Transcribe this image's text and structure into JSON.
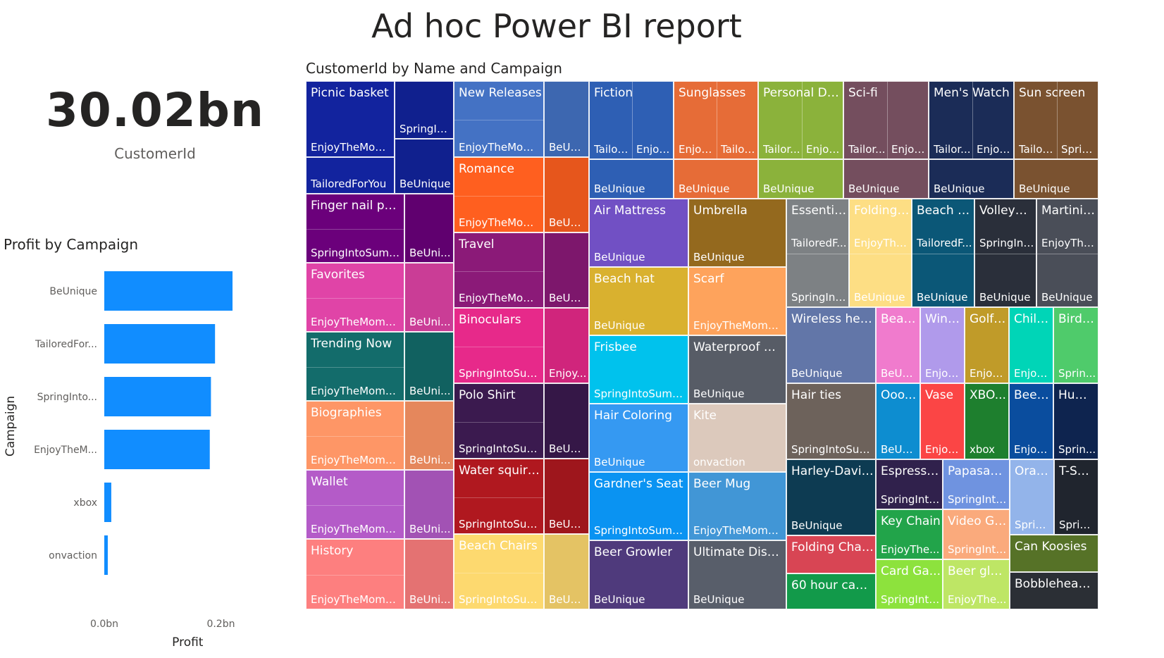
{
  "page": {
    "title": "Ad hoc Power BI report"
  },
  "kpi": {
    "value": "30.02bn",
    "label": "CustomerId"
  },
  "bar_chart": {
    "title": "Profit by Campaign",
    "xlabel": "Profit",
    "ylabel": "Campaign",
    "color": "#118DFF"
  },
  "treemap": {
    "title": "CustomerId by Name and Campaign"
  },
  "chart_data": [
    {
      "type": "bar",
      "orientation": "horizontal",
      "title": "Profit by Campaign",
      "xlabel": "Profit",
      "ylabel": "Campaign",
      "categories": [
        "BeUnique",
        "TailoredFor...",
        "SpringInto...",
        "EnjoyTheM...",
        "xbox",
        "onvaction"
      ],
      "values": [
        0.22,
        0.19,
        0.183,
        0.181,
        0.012,
        0.006
      ],
      "unit": "bn",
      "xlim": [
        0,
        0.22
      ],
      "xticks": [
        "0.0bn",
        "0.2bn"
      ],
      "grid": false,
      "legend": "none"
    },
    {
      "type": "treemap",
      "title": "CustomerId by Name and Campaign",
      "groups": [
        {
          "name": "Picnic basket",
          "color": "#12239E",
          "children": [
            "EnjoyTheMom...",
            "TailoredForYou",
            "SpringInt...",
            "BeUnique"
          ]
        },
        {
          "name": "New Releases",
          "color": "#4472C4",
          "children": [
            "EnjoyTheMome...",
            "BeUni..."
          ]
        },
        {
          "name": "Romance",
          "color": "#FF5F1F",
          "children": [
            "EnjoyTheMome...",
            "BeUni..."
          ]
        },
        {
          "name": "Travel",
          "color": "#8B1A78",
          "children": [
            "EnjoyTheMome...",
            "BeUni..."
          ]
        },
        {
          "name": "Binoculars",
          "color": "#E7298A",
          "children": [
            "SpringIntoSum...",
            "Enjoy..."
          ]
        },
        {
          "name": "Polo Shirt",
          "color": "#3B1A4F",
          "children": [
            "SpringIntoSum...",
            "BeUni..."
          ]
        },
        {
          "name": "Water squirter",
          "color": "#B0181F",
          "children": [
            "SpringIntoSum...",
            "BeUni..."
          ]
        },
        {
          "name": "Beach Chairs",
          "color": "#FDD96F",
          "children": [
            "SpringIntoSum...",
            "BeUni..."
          ]
        },
        {
          "name": "Finger nail polish",
          "color": "#6B007B",
          "children": [
            "SpringIntoSummer",
            "BeUni..."
          ]
        },
        {
          "name": "Favorites",
          "color": "#E044A7",
          "children": [
            "EnjoyTheMoment",
            "BeUni..."
          ]
        },
        {
          "name": "Trending Now",
          "color": "#136C6B",
          "children": [
            "EnjoyTheMoment",
            "BeUni..."
          ]
        },
        {
          "name": "Biographies",
          "color": "#FE9666",
          "children": [
            "EnjoyTheMoment",
            "BeUni..."
          ]
        },
        {
          "name": "Wallet",
          "color": "#B45BC8",
          "children": [
            "EnjoyTheMoment",
            "BeUni..."
          ]
        },
        {
          "name": "History",
          "color": "#FD7F7F",
          "children": [
            "EnjoyTheMoment",
            "BeUni..."
          ]
        },
        {
          "name": "Fiction",
          "color": "#2E5FB4",
          "children": [
            "Tailor...",
            "Enjoy...",
            "BeUnique"
          ]
        },
        {
          "name": "Sunglasses",
          "color": "#E66C37",
          "children": [
            "Enjoy...",
            "Tailor...",
            "BeUnique"
          ]
        },
        {
          "name": "Personal Dev...",
          "color": "#8BB23B",
          "children": [
            "Tailor...",
            "Enjoy...",
            "BeUnique"
          ]
        },
        {
          "name": "Sci-fi",
          "color": "#744E5E",
          "children": [
            "Tailor...",
            "Enjoy...",
            "BeUnique"
          ]
        },
        {
          "name": "Men's Watch",
          "color": "#1B2C57",
          "children": [
            "Tailor...",
            "Enjoy...",
            "BeUnique"
          ]
        },
        {
          "name": "Sun screen",
          "color": "#7A5230",
          "children": [
            "Tailor...",
            "Sprin...",
            "BeUnique"
          ]
        },
        {
          "name": "Air Mattress",
          "color": "#7150C4",
          "children": [
            "BeUnique"
          ]
        },
        {
          "name": "Umbrella",
          "color": "#94691E",
          "children": [
            "BeUnique"
          ]
        },
        {
          "name": "Beach hat",
          "color": "#D9B12F",
          "children": [
            "BeUnique"
          ]
        },
        {
          "name": "Scarf",
          "color": "#FEA35C",
          "children": [
            "EnjoyTheMoment"
          ]
        },
        {
          "name": "Frisbee",
          "color": "#00C2ED",
          "children": [
            "SpringIntoSummer"
          ]
        },
        {
          "name": "Waterproof wat...",
          "color": "#575C66",
          "children": [
            "BeUnique"
          ]
        },
        {
          "name": "Hair Coloring",
          "color": "#3599F2",
          "children": [
            "BeUnique"
          ]
        },
        {
          "name": "Kite",
          "color": "#DCC9BC",
          "children": [
            "onvaction"
          ]
        },
        {
          "name": "Gardner's Seat",
          "color": "#0A93F2",
          "children": [
            "SpringIntoSummer"
          ]
        },
        {
          "name": "Beer Mug",
          "color": "#4196D6",
          "children": [
            "EnjoyTheMoment"
          ]
        },
        {
          "name": "Beer Growler",
          "color": "#4F3A7C",
          "children": [
            "BeUnique"
          ]
        },
        {
          "name": "Ultimate Disc G...",
          "color": "#585E6A",
          "children": [
            "BeUnique"
          ]
        },
        {
          "name": "Essential...",
          "color": "#7D8184",
          "children": [
            "TailoredF...",
            "SpringInt..."
          ]
        },
        {
          "name": "Folding ...",
          "color": "#FDDE84",
          "children": [
            "EnjoyThe...",
            "BeUnique"
          ]
        },
        {
          "name": "Beach T...",
          "color": "#0B5777",
          "children": [
            "TailoredF...",
            "BeUnique"
          ]
        },
        {
          "name": "Volleyba...",
          "color": "#2A2F3A",
          "children": [
            "SpringInt...",
            "BeUnique"
          ]
        },
        {
          "name": "Martini ...",
          "color": "#4A4E58",
          "children": [
            "EnjoyThe...",
            "BeUnique"
          ]
        },
        {
          "name": "Wireless head...",
          "color": "#6276A8",
          "children": [
            "BeUnique"
          ]
        },
        {
          "name": "Hair ties",
          "color": "#6D625B",
          "children": [
            "SpringIntoSum..."
          ]
        },
        {
          "name": "Harley-David...",
          "color": "#0D3B52",
          "children": [
            "BeUnique"
          ]
        },
        {
          "name": "Folding Chairs",
          "color": "#D84554"
        },
        {
          "name": "60 hour candle",
          "color": "#129A4A"
        },
        {
          "name": "Beac...",
          "color": "#F07BCD",
          "children": [
            "BeUni..."
          ]
        },
        {
          "name": "Wine...",
          "color": "#B09AEB",
          "children": [
            "Enjoy..."
          ]
        },
        {
          "name": "Golf ...",
          "color": "#C09B29",
          "children": [
            "Enjoy..."
          ]
        },
        {
          "name": "Child...",
          "color": "#00D5B7",
          "children": [
            "Enjoy..."
          ]
        },
        {
          "name": "Bird ...",
          "color": "#4FCB6B",
          "children": [
            "Sprin..."
          ]
        },
        {
          "name": "Ooo...",
          "color": "#0D8DD0",
          "children": [
            "BeUni..."
          ]
        },
        {
          "name": "Vase",
          "color": "#FB4545",
          "children": [
            "Enjoy..."
          ]
        },
        {
          "name": "XBO...",
          "color": "#1E7F2E",
          "children": [
            "xbox"
          ]
        },
        {
          "name": "Beer ...",
          "color": "#0A4D9E",
          "children": [
            "Enjoy..."
          ]
        },
        {
          "name": "Hum...",
          "color": "#0E244F",
          "children": [
            "Sprin..."
          ]
        },
        {
          "name": "Espresso ...",
          "color": "#30214C",
          "children": [
            "SpringInto..."
          ]
        },
        {
          "name": "Papasan ...",
          "color": "#6F93E0",
          "children": [
            "SpringInto..."
          ]
        },
        {
          "name": "Oran...",
          "color": "#93B4EA",
          "children": [
            "Sprin..."
          ]
        },
        {
          "name": "T-Shi...",
          "color": "#20252E",
          "children": [
            "Sprin..."
          ]
        },
        {
          "name": "Key Chain",
          "color": "#22A44A",
          "children": [
            "EnjoyThe..."
          ]
        },
        {
          "name": "Video Ga...",
          "color": "#FAAA7C",
          "children": [
            "SpringInto..."
          ]
        },
        {
          "name": "Can Koosies",
          "color": "#567227"
        },
        {
          "name": "Card Ga...",
          "color": "#8DE23D",
          "children": [
            "SpringInto..."
          ]
        },
        {
          "name": "Beer glas...",
          "color": "#BEE665",
          "children": [
            "EnjoyThe..."
          ]
        },
        {
          "name": "Bobblehead set",
          "color": "#2B2F35"
        }
      ]
    }
  ]
}
